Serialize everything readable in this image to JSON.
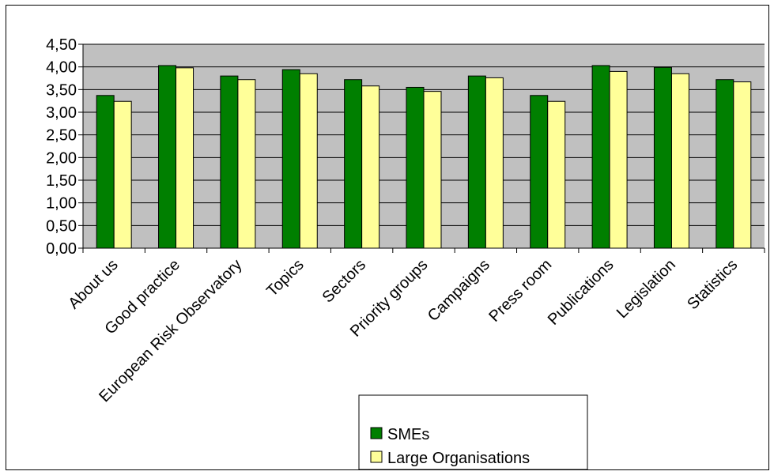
{
  "chart_data": {
    "type": "bar",
    "title": "",
    "xlabel": "",
    "ylabel": "",
    "ylim": [
      0,
      4.5
    ],
    "ytick_step": 0.5,
    "ytick_labels": [
      "0,00",
      "0,50",
      "1,00",
      "1,50",
      "2,00",
      "2,50",
      "3,00",
      "3,50",
      "4,00",
      "4,50"
    ],
    "grid": true,
    "plot_background": "#c0c0c0",
    "legend_position": "bottom-right",
    "categories": [
      "About us",
      "Good practice",
      "European Risk Observatory",
      "Topics",
      "Sectors",
      "Priority groups",
      "Campaigns",
      "Press room",
      "Publications",
      "Legislation",
      "Statistics"
    ],
    "series": [
      {
        "name": "SMEs",
        "color": "#007f00",
        "values": [
          3.37,
          4.03,
          3.8,
          3.94,
          3.72,
          3.55,
          3.8,
          3.37,
          4.03,
          3.99,
          3.72
        ]
      },
      {
        "name": "Large Organisations",
        "color": "#ffff99",
        "values": [
          3.24,
          3.98,
          3.72,
          3.85,
          3.58,
          3.46,
          3.76,
          3.24,
          3.9,
          3.85,
          3.67
        ]
      }
    ]
  }
}
